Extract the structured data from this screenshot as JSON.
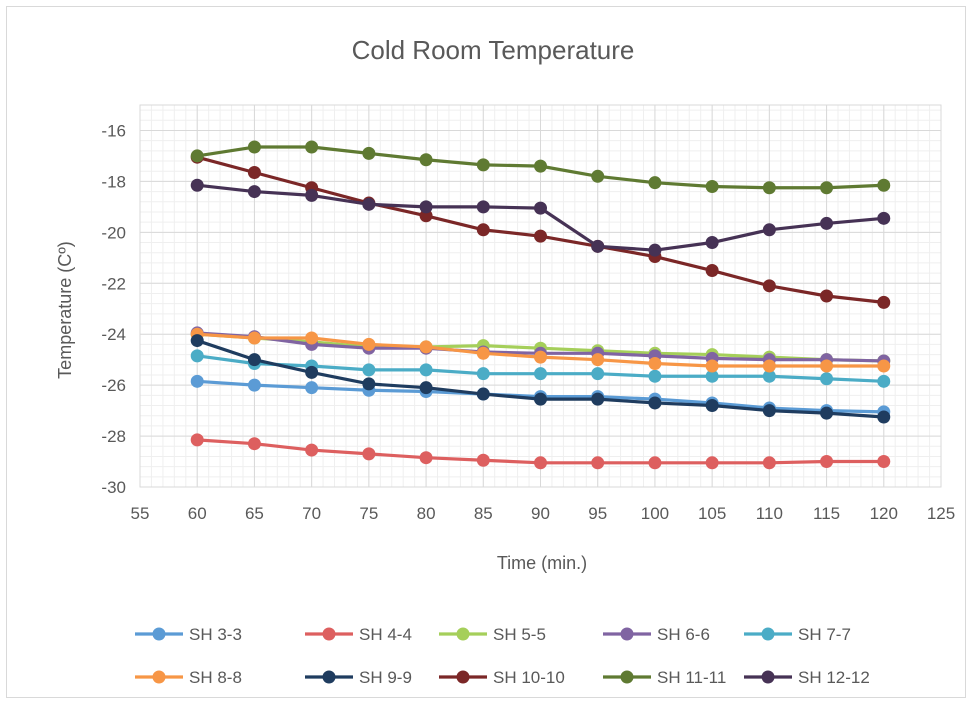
{
  "chart_data": {
    "type": "line",
    "title": "Cold Room Temperature",
    "xlabel": "Time (min.)",
    "ylabel": "Temperature (Cº)",
    "xlim": [
      55,
      125
    ],
    "ylim": [
      -30,
      -15
    ],
    "x_ticks": [
      55,
      60,
      65,
      70,
      75,
      80,
      85,
      90,
      95,
      100,
      105,
      110,
      115,
      120,
      125
    ],
    "y_ticks": [
      -30,
      -28,
      -26,
      -24,
      -22,
      -20,
      -18,
      -16
    ],
    "grid": true,
    "legend_position": "bottom",
    "x": [
      60,
      65,
      70,
      75,
      80,
      85,
      90,
      95,
      100,
      105,
      110,
      115,
      120
    ],
    "series": [
      {
        "name": "SH 3-3",
        "color": "#5b9bd5",
        "values": [
          -25.85,
          -26.0,
          -26.1,
          -26.2,
          -26.25,
          -26.35,
          -26.45,
          -26.45,
          -26.55,
          -26.7,
          -26.9,
          -27.0,
          -27.05
        ]
      },
      {
        "name": "SH 4-4",
        "color": "#dd5f5f",
        "values": [
          -28.15,
          -28.3,
          -28.55,
          -28.7,
          -28.85,
          -28.95,
          -29.05,
          -29.05,
          -29.05,
          -29.05,
          -29.05,
          -29.0,
          -29.0
        ]
      },
      {
        "name": "SH 5-5",
        "color": "#a5cf5a",
        "values": [
          -24.0,
          -24.15,
          -24.3,
          -24.5,
          -24.5,
          -24.45,
          -24.55,
          -24.65,
          -24.75,
          -24.8,
          -24.9,
          -25.0,
          -25.05
        ]
      },
      {
        "name": "SH 6-6",
        "color": "#8064a2",
        "values": [
          -23.95,
          -24.1,
          -24.4,
          -24.55,
          -24.55,
          -24.7,
          -24.75,
          -24.75,
          -24.85,
          -24.95,
          -25.0,
          -25.0,
          -25.05
        ]
      },
      {
        "name": "SH 7-7",
        "color": "#4bacc6",
        "values": [
          -24.85,
          -25.15,
          -25.25,
          -25.4,
          -25.4,
          -25.55,
          -25.55,
          -25.55,
          -25.65,
          -25.65,
          -25.65,
          -25.75,
          -25.85
        ]
      },
      {
        "name": "SH 8-8",
        "color": "#f79646",
        "values": [
          -24.0,
          -24.15,
          -24.15,
          -24.4,
          -24.5,
          -24.75,
          -24.9,
          -25.0,
          -25.15,
          -25.25,
          -25.25,
          -25.25,
          -25.25
        ]
      },
      {
        "name": "SH 9-9",
        "color": "#1f3c5f",
        "values": [
          -24.25,
          -25.0,
          -25.5,
          -25.95,
          -26.1,
          -26.35,
          -26.55,
          -26.55,
          -26.7,
          -26.8,
          -27.0,
          -27.1,
          -27.25
        ]
      },
      {
        "name": "SH 10-10",
        "color": "#7b2727",
        "values": [
          -17.05,
          -17.65,
          -18.25,
          -18.85,
          -19.35,
          -19.9,
          -20.15,
          -20.55,
          -20.95,
          -21.5,
          -22.1,
          -22.5,
          -22.75
        ]
      },
      {
        "name": "SH 11-11",
        "color": "#5f7a32",
        "values": [
          -17.0,
          -16.65,
          -16.65,
          -16.9,
          -17.15,
          -17.35,
          -17.4,
          -17.8,
          -18.05,
          -18.2,
          -18.25,
          -18.25,
          -18.15
        ]
      },
      {
        "name": "SH 12-12",
        "color": "#463255",
        "values": [
          -18.15,
          -18.4,
          -18.55,
          -18.9,
          -19.0,
          -19.0,
          -19.05,
          -20.55,
          -20.7,
          -20.4,
          -19.9,
          -19.65,
          -19.45
        ]
      }
    ]
  }
}
